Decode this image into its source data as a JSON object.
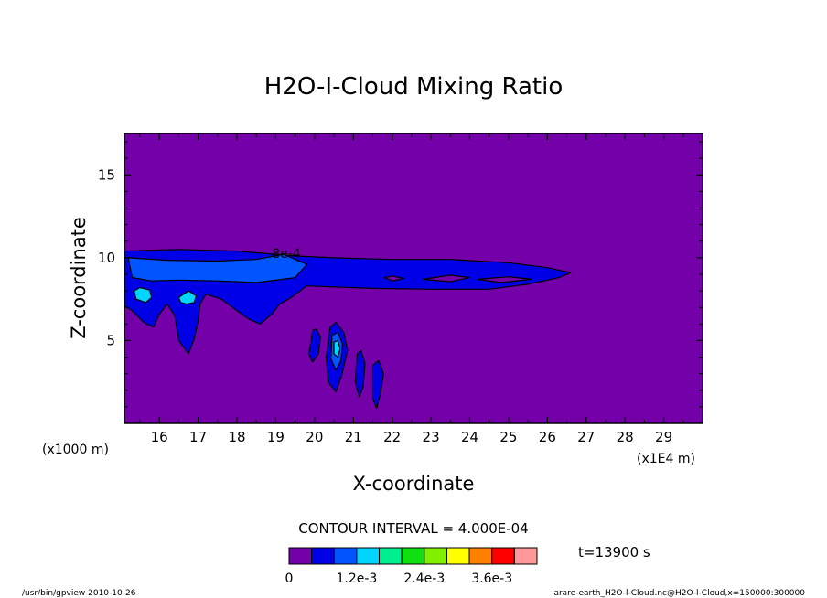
{
  "chart_data": {
    "type": "contour",
    "title": "H2O-I-Cloud Mixing Ratio",
    "xlabel": "X-coordinate",
    "ylabel": "Z-coordinate",
    "x_unit": "(x1E4 m)",
    "y_unit": "(x1000 m)",
    "xlim": [
      15.1,
      30.0
    ],
    "ylim": [
      0.0,
      17.5
    ],
    "x_ticks": [
      16,
      17,
      18,
      19,
      20,
      21,
      22,
      23,
      24,
      25,
      26,
      27,
      28,
      29
    ],
    "y_ticks": [
      5,
      10,
      15
    ],
    "x_tick_labels": [
      "16",
      "17",
      "18",
      "19",
      "20",
      "21",
      "22",
      "23",
      "24",
      "25",
      "26",
      "27",
      "28",
      "29"
    ],
    "y_tick_labels": [
      "5",
      "10",
      "15"
    ],
    "contour_interval_text": "CONTOUR INTERVAL = 4.000E-04",
    "contour_interval": 0.0004,
    "contour_label": "8e-4",
    "contour_label_pos": [
      18.9,
      10.0
    ],
    "time_text": "t=13900  s",
    "colorbar": {
      "colors": [
        "#7300a8",
        "#0000e6",
        "#0055ff",
        "#00d5ff",
        "#00ee8e",
        "#10df10",
        "#80f000",
        "#ffff00",
        "#ff8000",
        "#ff0000",
        "#ff9999"
      ],
      "tick_labels": [
        "0",
        "1.2e-3",
        "2.4e-3",
        "3.6e-3"
      ]
    },
    "fields": [
      {
        "name": "anvil",
        "level": 1,
        "points": [
          [
            15.1,
            10.4
          ],
          [
            16.5,
            10.5
          ],
          [
            18,
            10.4
          ],
          [
            19.5,
            10.1
          ],
          [
            20.5,
            10.0
          ],
          [
            22,
            9.9
          ],
          [
            23.5,
            9.9
          ],
          [
            25,
            9.7
          ],
          [
            26.0,
            9.4
          ],
          [
            26.6,
            9.1
          ],
          [
            26.3,
            8.8
          ],
          [
            25.5,
            8.4
          ],
          [
            24.5,
            8.1
          ],
          [
            23,
            8.1
          ],
          [
            21.5,
            8.15
          ],
          [
            19.8,
            8.3
          ],
          [
            19.4,
            7.6
          ],
          [
            19.1,
            7.2
          ],
          [
            18.9,
            6.6
          ],
          [
            18.6,
            6.0
          ],
          [
            18.3,
            6.3
          ],
          [
            18.0,
            6.8
          ],
          [
            17.6,
            7.5
          ],
          [
            17.2,
            7.8
          ],
          [
            17.05,
            7.2
          ],
          [
            17.0,
            6.2
          ],
          [
            16.9,
            5.1
          ],
          [
            16.75,
            4.2
          ],
          [
            16.5,
            5.0
          ],
          [
            16.4,
            6.5
          ],
          [
            16.2,
            7.2
          ],
          [
            16.0,
            6.6
          ],
          [
            15.85,
            5.8
          ],
          [
            15.6,
            6.1
          ],
          [
            15.3,
            6.8
          ],
          [
            15.1,
            7.1
          ]
        ]
      },
      {
        "name": "anvil-core",
        "level": 2,
        "points": [
          [
            15.2,
            10.0
          ],
          [
            16.2,
            9.85
          ],
          [
            17.5,
            9.8
          ],
          [
            18.5,
            9.9
          ],
          [
            19.2,
            10.2
          ],
          [
            19.8,
            9.6
          ],
          [
            19.5,
            8.8
          ],
          [
            18.5,
            8.5
          ],
          [
            17.5,
            8.6
          ],
          [
            16.5,
            8.65
          ],
          [
            15.8,
            8.6
          ],
          [
            15.3,
            8.8
          ]
        ]
      },
      {
        "name": "plume-1",
        "level": 3,
        "points": [
          [
            15.35,
            8.0
          ],
          [
            15.5,
            8.2
          ],
          [
            15.75,
            8.05
          ],
          [
            15.8,
            7.6
          ],
          [
            15.65,
            7.3
          ],
          [
            15.4,
            7.5
          ]
        ]
      },
      {
        "name": "plume-2",
        "level": 3,
        "points": [
          [
            16.5,
            7.6
          ],
          [
            16.75,
            8.0
          ],
          [
            16.95,
            7.7
          ],
          [
            16.9,
            7.3
          ],
          [
            16.7,
            7.2
          ],
          [
            16.55,
            7.3
          ]
        ]
      },
      {
        "name": "cell-3",
        "level": 1,
        "points": [
          [
            19.9,
            4.8
          ],
          [
            19.95,
            5.6
          ],
          [
            20.05,
            5.7
          ],
          [
            20.15,
            5.2
          ],
          [
            20.1,
            4.2
          ],
          [
            19.95,
            3.7
          ],
          [
            19.85,
            4.2
          ]
        ]
      },
      {
        "name": "cell-4",
        "level": 1,
        "points": [
          [
            20.4,
            5.8
          ],
          [
            20.55,
            6.1
          ],
          [
            20.75,
            5.5
          ],
          [
            20.85,
            4.4
          ],
          [
            20.7,
            2.9
          ],
          [
            20.55,
            1.9
          ],
          [
            20.35,
            2.5
          ],
          [
            20.3,
            4.0
          ]
        ]
      },
      {
        "name": "cell-4-mid",
        "level": 2,
        "points": [
          [
            20.45,
            5.3
          ],
          [
            20.6,
            5.5
          ],
          [
            20.72,
            4.8
          ],
          [
            20.68,
            3.8
          ],
          [
            20.55,
            3.2
          ],
          [
            20.42,
            3.9
          ]
        ]
      },
      {
        "name": "cell-4-core",
        "level": 3,
        "points": [
          [
            20.5,
            4.9
          ],
          [
            20.6,
            5.0
          ],
          [
            20.66,
            4.5
          ],
          [
            20.6,
            4.0
          ],
          [
            20.5,
            4.2
          ]
        ]
      },
      {
        "name": "cell-5",
        "level": 1,
        "points": [
          [
            21.1,
            4.2
          ],
          [
            21.2,
            4.4
          ],
          [
            21.3,
            3.6
          ],
          [
            21.25,
            2.2
          ],
          [
            21.15,
            1.6
          ],
          [
            21.05,
            2.5
          ]
        ]
      },
      {
        "name": "cell-6",
        "level": 1,
        "points": [
          [
            21.5,
            3.5
          ],
          [
            21.65,
            3.8
          ],
          [
            21.78,
            3.0
          ],
          [
            21.7,
            1.8
          ],
          [
            21.6,
            0.9
          ],
          [
            21.5,
            1.5
          ]
        ]
      },
      {
        "name": "cell-7",
        "level": 1,
        "points": [
          [
            19.8,
            0.0
          ],
          [
            19.8,
            0.0
          ],
          [
            19.8,
            0.0
          ]
        ]
      },
      {
        "name": "hole-1",
        "level": 0,
        "points": [
          [
            21.8,
            8.8
          ],
          [
            22.0,
            8.9
          ],
          [
            22.3,
            8.75
          ],
          [
            22.0,
            8.6
          ]
        ]
      },
      {
        "name": "hole-2",
        "level": 0,
        "points": [
          [
            22.8,
            8.7
          ],
          [
            23.5,
            8.95
          ],
          [
            24.0,
            8.8
          ],
          [
            23.5,
            8.55
          ]
        ]
      },
      {
        "name": "hole-3",
        "level": 0,
        "points": [
          [
            24.2,
            8.7
          ],
          [
            25.0,
            8.85
          ],
          [
            25.6,
            8.7
          ],
          [
            24.8,
            8.5
          ]
        ]
      }
    ]
  },
  "footer": {
    "left": "/usr/bin/gpview  2010-10-26",
    "right": "arare-earth_H2O-l-Cloud.nc@H2O-l-Cloud,x=150000:300000"
  }
}
